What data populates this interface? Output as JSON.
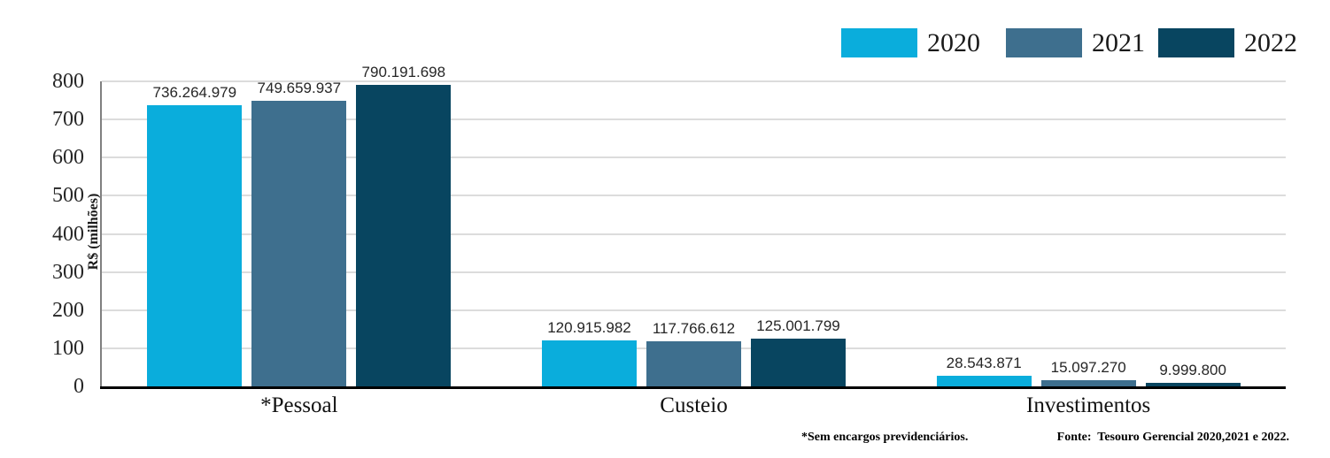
{
  "chart_data": {
    "type": "bar",
    "title": "",
    "ylabel": "R$ (milhões)",
    "categories": [
      "*Pessoal",
      "Custeio",
      "Investimentos"
    ],
    "series": [
      {
        "name": "2020",
        "color": "#0AADDC",
        "values": [
          736264979,
          120915982,
          28543871
        ],
        "labels": [
          "736.264.979",
          "120.915.982",
          "28.543.871"
        ]
      },
      {
        "name": "2021",
        "color": "#3E6F8E",
        "values": [
          749659937,
          117766612,
          15097270
        ],
        "labels": [
          "749.659.937",
          "117.766.612",
          "15.097.270"
        ]
      },
      {
        "name": "2022",
        "color": "#084560",
        "values": [
          790191698,
          125001799,
          9999800
        ],
        "labels": [
          "790.191.698",
          "125.001.799",
          "9.999.800"
        ]
      }
    ],
    "ylim": [
      0,
      800
    ],
    "ytick_step": 100,
    "yticks": [
      0,
      100,
      200,
      300,
      400,
      500,
      600,
      700,
      800
    ],
    "grid": true,
    "legend_position": "top-right",
    "value_divisor_for_axis": 1000000
  },
  "footnotes": {
    "note": "*Sem encargos previdenciários.",
    "source": "Fonte:  Tesouro Gerencial 2020,2021 e 2022."
  }
}
